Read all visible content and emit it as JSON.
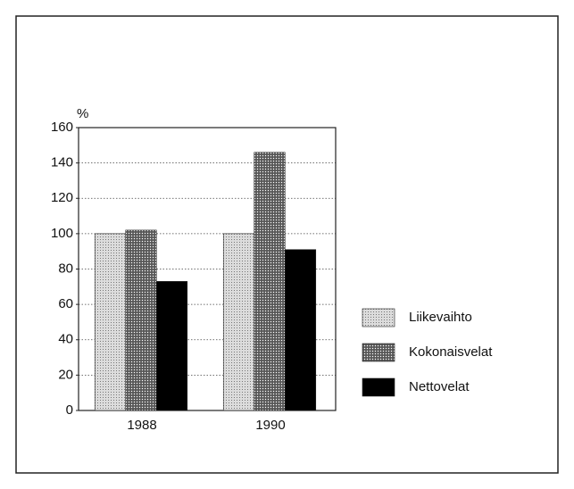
{
  "chart_data": {
    "type": "bar",
    "y_label": "%",
    "categories": [
      "1988",
      "1990"
    ],
    "series": [
      {
        "name": "Liikevaihto",
        "color": "#dcdcdc",
        "values": [
          100,
          100
        ]
      },
      {
        "name": "Kokonaisvelat",
        "color": "#6a6a6a",
        "values": [
          102,
          146
        ]
      },
      {
        "name": "Nettovelat",
        "color": "#000000",
        "values": [
          73,
          91
        ]
      }
    ],
    "ylim": [
      0,
      160
    ],
    "yticks": [
      0,
      20,
      40,
      60,
      80,
      100,
      120,
      140,
      160
    ],
    "grid": true,
    "legend": "right"
  }
}
